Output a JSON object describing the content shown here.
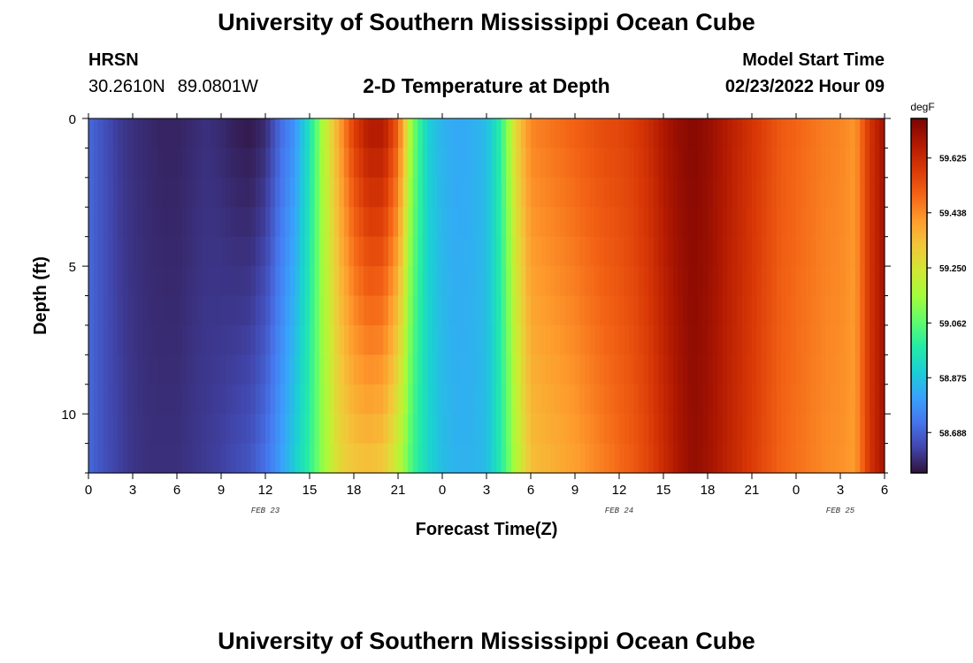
{
  "header": {
    "title": "University of Southern Mississippi Ocean Cube",
    "station": "HRSN",
    "latitude": "30.2610N",
    "longitude": "89.0801W",
    "plot_title": "2-D Temperature at Depth",
    "model_label": "Model Start Time",
    "model_time": "02/23/2022 Hour 09"
  },
  "footer": {
    "title": "University of Southern Mississippi Ocean Cube"
  },
  "chart_data": {
    "type": "heatmap",
    "title": "2-D Temperature at Depth",
    "xlabel": "Forecast Time(Z)",
    "ylabel": "Depth (ft)",
    "x_tick_labels": [
      "0",
      "3",
      "6",
      "9",
      "12",
      "15",
      "18",
      "21",
      "0",
      "3",
      "6",
      "9",
      "12",
      "15",
      "18",
      "21",
      "0",
      "3",
      "6"
    ],
    "x_date_labels": [
      {
        "label": "FEB 23",
        "tick_index": 4
      },
      {
        "label": "FEB 24",
        "tick_index": 12
      },
      {
        "label": "FEB 25",
        "tick_index": 17
      }
    ],
    "x_range_hours": [
      0,
      54
    ],
    "y_tick_labels": [
      "0",
      "5",
      "10"
    ],
    "y_ticks": [
      0,
      5,
      10
    ],
    "y_range": [
      0,
      12
    ],
    "colorbar": {
      "unit": "degF",
      "min": 58.55,
      "max": 59.76,
      "tick_values": [
        58.688,
        58.875,
        59.062,
        59.25,
        59.438,
        59.625
      ],
      "tick_labels": [
        "58.688",
        "58.875",
        "59.062",
        "59.250",
        "59.438",
        "59.625"
      ],
      "colors": [
        "#30123b",
        "#4145ab",
        "#4675ed",
        "#39a2fc",
        "#1bcfd4",
        "#24eca6",
        "#61fc6c",
        "#a4fc3b",
        "#d1e834",
        "#f3c63a",
        "#fe9b2d",
        "#f36315",
        "#d93806",
        "#b11901",
        "#7a0403"
      ]
    },
    "profile_hours": [
      0,
      1,
      2,
      3,
      4,
      5,
      6,
      7,
      8,
      9,
      10,
      11,
      12,
      13,
      14,
      15,
      16,
      17,
      18,
      19,
      20,
      21,
      22,
      23,
      24,
      25,
      26,
      27,
      28,
      29,
      30,
      31,
      32,
      33,
      34,
      35,
      36,
      37,
      38,
      39,
      40,
      41,
      42,
      43,
      44,
      45,
      46,
      47,
      48,
      49,
      50,
      51,
      52,
      53,
      54
    ],
    "profile_surface_degF": [
      58.7,
      58.66,
      58.62,
      58.6,
      58.59,
      58.58,
      58.58,
      58.59,
      58.6,
      58.59,
      58.57,
      58.56,
      58.59,
      58.7,
      58.78,
      58.95,
      59.2,
      59.4,
      59.58,
      59.68,
      59.68,
      59.52,
      59.1,
      58.9,
      58.84,
      58.82,
      58.83,
      58.86,
      59.0,
      59.3,
      59.45,
      59.47,
      59.49,
      59.51,
      59.53,
      59.55,
      59.56,
      59.58,
      59.62,
      59.68,
      59.72,
      59.74,
      59.72,
      59.68,
      59.64,
      59.6,
      59.56,
      59.52,
      59.5,
      59.48,
      59.46,
      59.45,
      59.42,
      59.6,
      59.7
    ],
    "profile_bottom_degF": [
      58.7,
      58.66,
      58.63,
      58.61,
      58.6,
      58.6,
      58.6,
      58.61,
      58.62,
      58.63,
      58.65,
      58.67,
      58.72,
      58.8,
      58.9,
      59.0,
      59.15,
      59.28,
      59.32,
      59.33,
      59.31,
      59.2,
      59.02,
      58.92,
      58.86,
      58.84,
      58.84,
      58.86,
      58.98,
      59.18,
      59.34,
      59.36,
      59.38,
      59.4,
      59.43,
      59.46,
      59.49,
      59.52,
      59.56,
      59.62,
      59.68,
      59.72,
      59.7,
      59.66,
      59.62,
      59.58,
      59.54,
      59.5,
      59.48,
      59.46,
      59.44,
      59.43,
      59.41,
      59.6,
      59.7
    ],
    "grid": false,
    "legend": "colorbar-right"
  }
}
